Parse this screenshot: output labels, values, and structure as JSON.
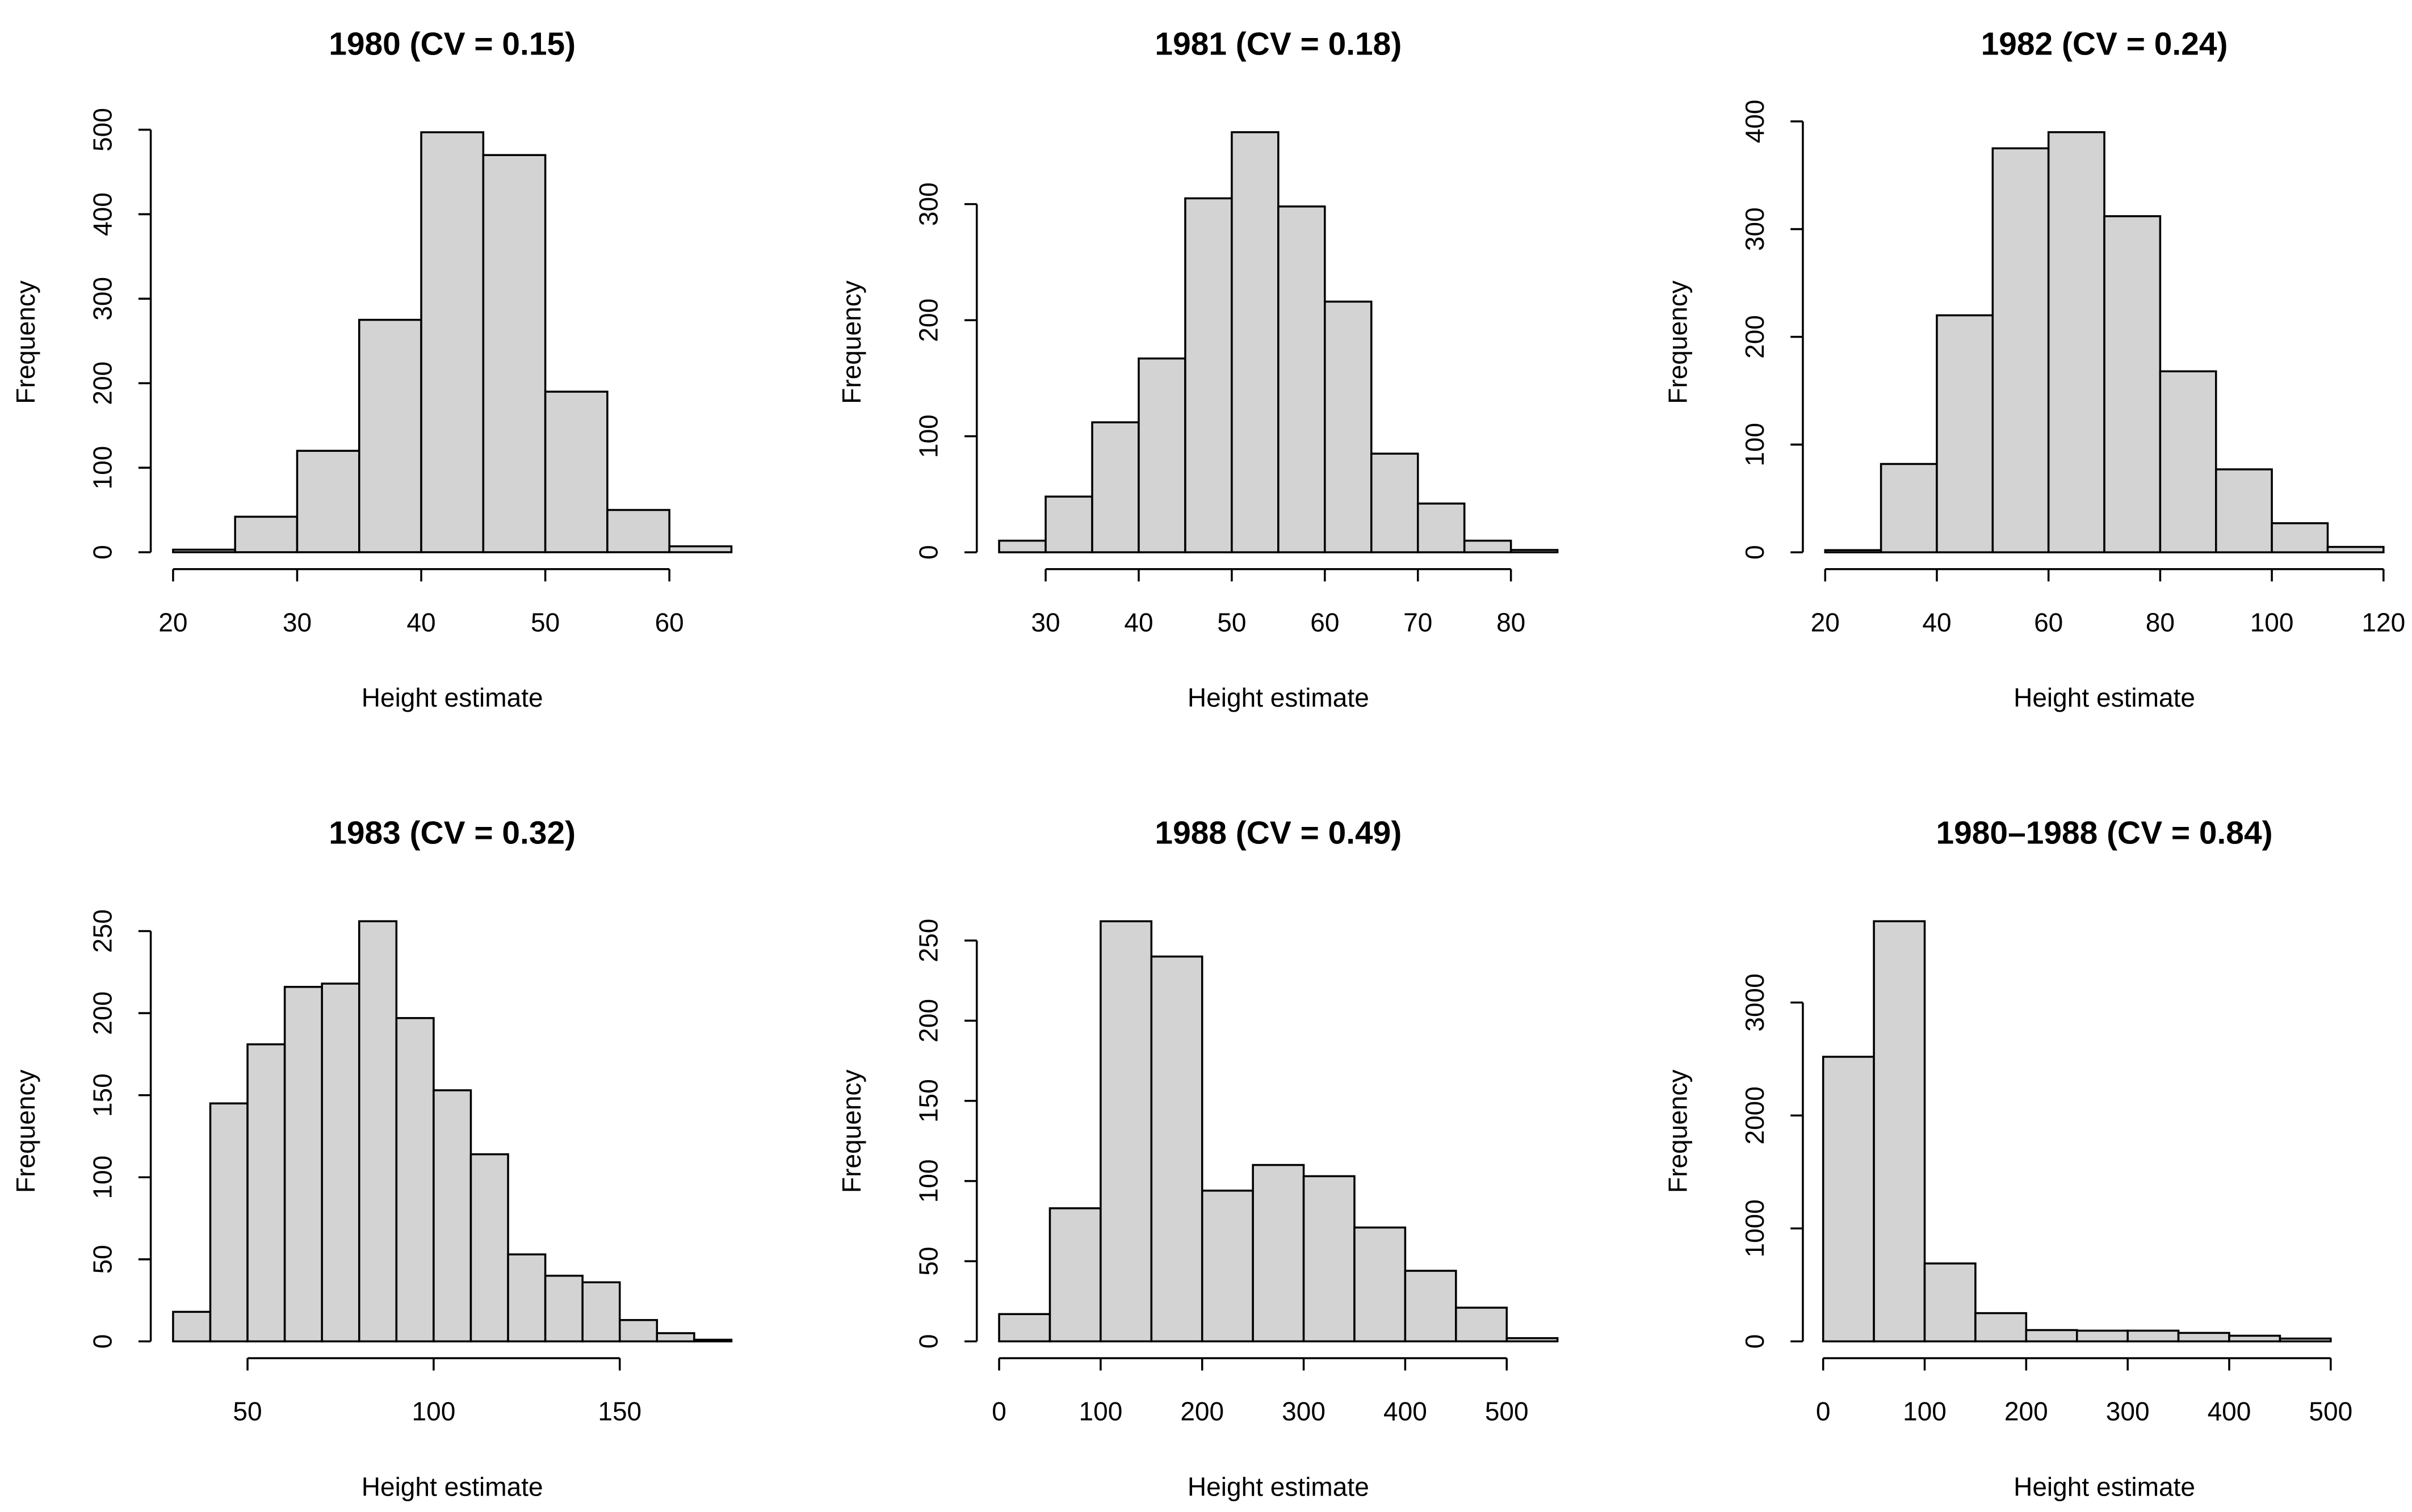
{
  "chart_data": [
    {
      "type": "histogram",
      "title": "1980 (CV = 0.15)",
      "xlabel": "Height estimate",
      "ylabel": "Frequency",
      "color": "#d3d3d3",
      "bins": [
        20,
        25,
        30,
        35,
        40,
        45,
        50,
        55,
        60,
        65
      ],
      "values": [
        3,
        42,
        120,
        275,
        497,
        470,
        190,
        50,
        7
      ],
      "xlim": [
        18.2,
        66.8
      ],
      "ylim": [
        -20,
        517
      ],
      "xticks": [
        20,
        30,
        40,
        50,
        60
      ],
      "yticks": [
        0,
        100,
        200,
        300,
        400,
        500
      ]
    },
    {
      "type": "histogram",
      "title": "1981 (CV = 0.18)",
      "xlabel": "Height estimate",
      "ylabel": "Frequency",
      "color": "#d3d3d3",
      "bins": [
        25,
        30,
        35,
        40,
        45,
        50,
        55,
        60,
        65,
        70,
        75,
        80,
        85
      ],
      "values": [
        10,
        48,
        112,
        167,
        305,
        362,
        298,
        216,
        85,
        42,
        10,
        2
      ],
      "xlim": [
        22.6,
        87.4
      ],
      "ylim": [
        -14.5,
        376.5
      ],
      "xticks": [
        30,
        40,
        50,
        60,
        70,
        80
      ],
      "yticks": [
        0,
        100,
        200,
        300
      ]
    },
    {
      "type": "histogram",
      "title": "1982 (CV = 0.24)",
      "xlabel": "Height estimate",
      "ylabel": "Frequency",
      "color": "#d3d3d3",
      "bins": [
        20,
        30,
        40,
        50,
        60,
        70,
        80,
        90,
        100,
        110,
        120
      ],
      "values": [
        2,
        82,
        220,
        375,
        390,
        312,
        168,
        77,
        27,
        5
      ],
      "xlim": [
        16,
        124
      ],
      "ylim": [
        -15.6,
        405.6
      ],
      "xticks": [
        20,
        40,
        60,
        80,
        100,
        120
      ],
      "yticks": [
        0,
        100,
        200,
        300,
        400
      ]
    },
    {
      "type": "histogram",
      "title": "1983 (CV = 0.32)",
      "xlabel": "Height estimate",
      "ylabel": "Frequency",
      "color": "#d3d3d3",
      "bins": [
        30,
        40,
        50,
        60,
        70,
        80,
        90,
        100,
        110,
        120,
        130,
        140,
        150,
        160,
        170,
        180
      ],
      "values": [
        18,
        145,
        181,
        216,
        218,
        256,
        197,
        153,
        114,
        53,
        40,
        36,
        13,
        5,
        1
      ],
      "xlim": [
        24,
        186
      ],
      "ylim": [
        -10.24,
        266.24
      ],
      "xticks": [
        50,
        100,
        150
      ],
      "yticks": [
        0,
        50,
        100,
        150,
        200,
        250
      ]
    },
    {
      "type": "histogram",
      "title": "1988 (CV = 0.49)",
      "xlabel": "Height estimate",
      "ylabel": "Frequency",
      "color": "#d3d3d3",
      "bins": [
        0,
        50,
        100,
        150,
        200,
        250,
        300,
        350,
        400,
        450,
        500,
        550
      ],
      "values": [
        17,
        83,
        262,
        240,
        94,
        110,
        103,
        71,
        44,
        21,
        2
      ],
      "xlim": [
        -22,
        572
      ],
      "ylim": [
        -10.5,
        272.5
      ],
      "xticks": [
        0,
        100,
        200,
        300,
        400,
        500
      ],
      "yticks": [
        0,
        50,
        100,
        150,
        200,
        250
      ]
    },
    {
      "type": "histogram",
      "title": "1980–1988 (CV = 0.84)",
      "xlabel": "Height estimate",
      "ylabel": "Frequency",
      "color": "#d3d3d3",
      "bins": [
        0,
        50,
        100,
        150,
        200,
        250,
        300,
        350,
        400,
        450,
        500
      ],
      "values": [
        2520,
        3720,
        690,
        250,
        100,
        95,
        95,
        75,
        50,
        25
      ],
      "xlim": [
        -20,
        574
      ],
      "ylim": [
        -148.8,
        3868.8
      ],
      "xticks": [
        0,
        100,
        200,
        300,
        400,
        500
      ],
      "yticks": [
        0,
        1000,
        2000,
        3000
      ]
    }
  ]
}
